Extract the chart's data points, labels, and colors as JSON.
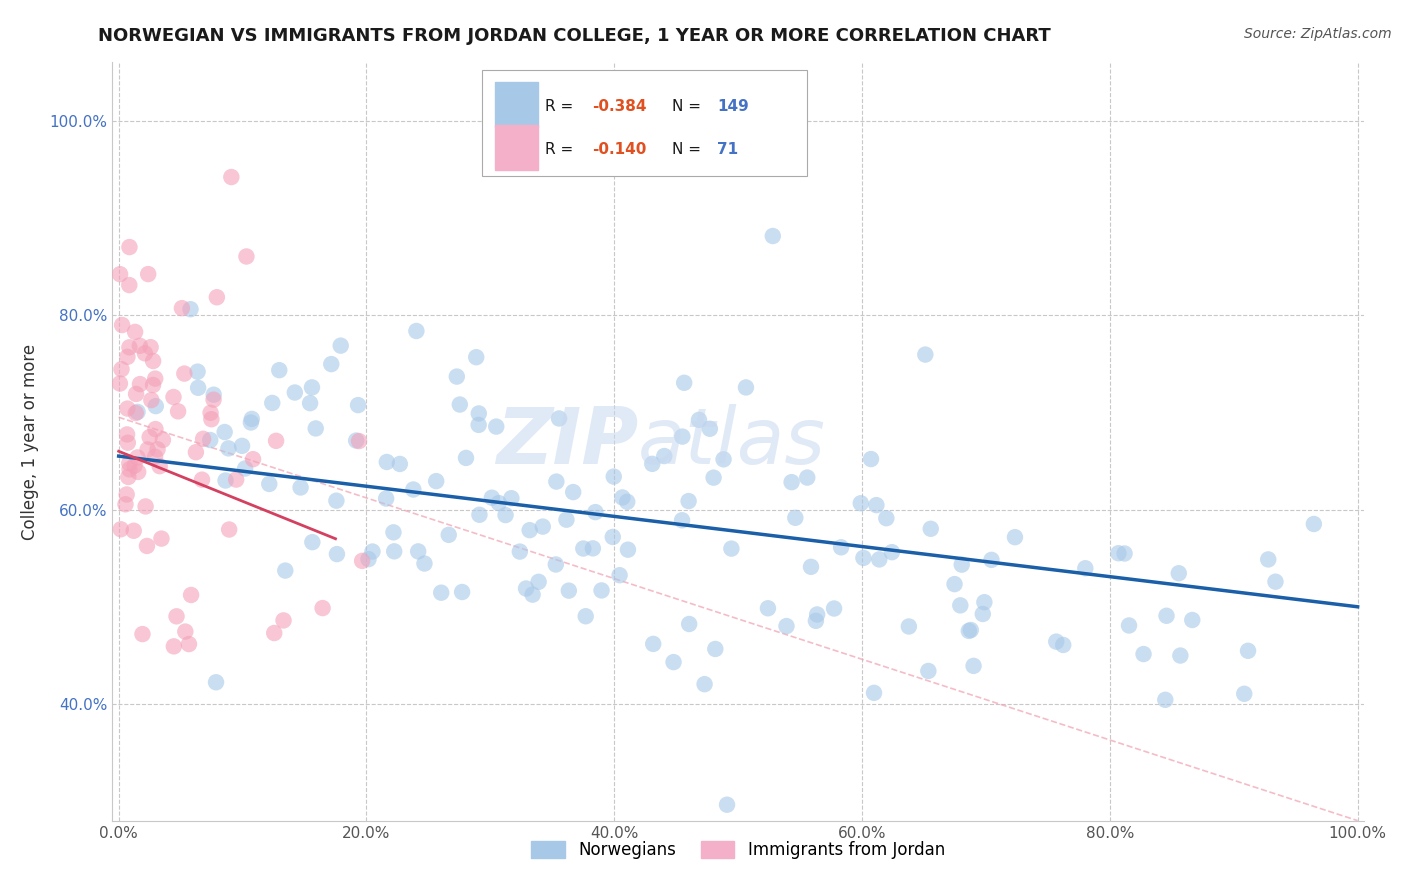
{
  "title": "NORWEGIAN VS IMMIGRANTS FROM JORDAN COLLEGE, 1 YEAR OR MORE CORRELATION CHART",
  "source": "Source: ZipAtlas.com",
  "ylabel": "College, 1 year or more",
  "legend_label1": "Norwegians",
  "legend_label2": "Immigrants from Jordan",
  "R1": "-0.384",
  "N1": "149",
  "R2": "-0.140",
  "N2": "71",
  "blue_scatter_color": "#a8c8e8",
  "pink_scatter_color": "#f4a0b8",
  "blue_line_color": "#1a5fa8",
  "pink_line_color": "#d44060",
  "diag_line_color": "#f0a0b0",
  "watermark_color": "#c8d8f0",
  "background_color": "#ffffff",
  "grid_color": "#c8c8c8",
  "title_color": "#1a1a1a",
  "ytick_color": "#4472c4",
  "xtick_color": "#555555",
  "ylabel_color": "#333333",
  "source_color": "#555555",
  "legend_text_color": "#1a1a1a",
  "legend_R_color": "#e05020",
  "legend_N_color": "#4472c4"
}
